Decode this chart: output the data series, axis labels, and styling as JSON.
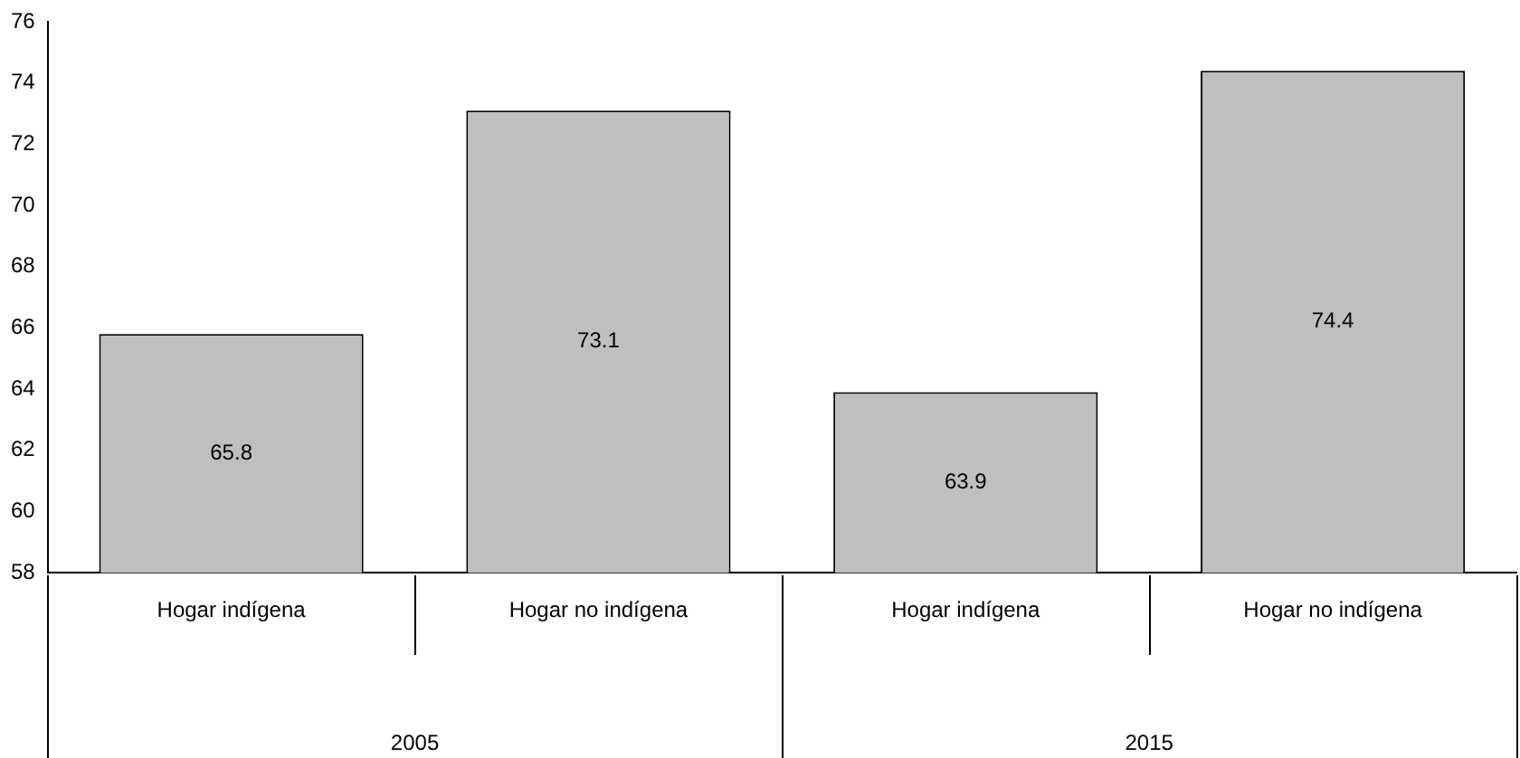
{
  "chart_data": {
    "type": "bar",
    "categories": [
      "Hogar indígena",
      "Hogar no indígena",
      "Hogar indígena",
      "Hogar no indígena"
    ],
    "values": [
      65.8,
      73.1,
      63.9,
      74.4
    ],
    "color": "#bfbfbf",
    "ylim": [
      58,
      76
    ],
    "yticks": [
      58,
      60,
      62,
      64,
      66,
      68,
      70,
      72,
      74,
      76
    ],
    "grid": false,
    "legend": false,
    "data_labels": true,
    "annotations": [
      "2005",
      "2015"
    ]
  }
}
